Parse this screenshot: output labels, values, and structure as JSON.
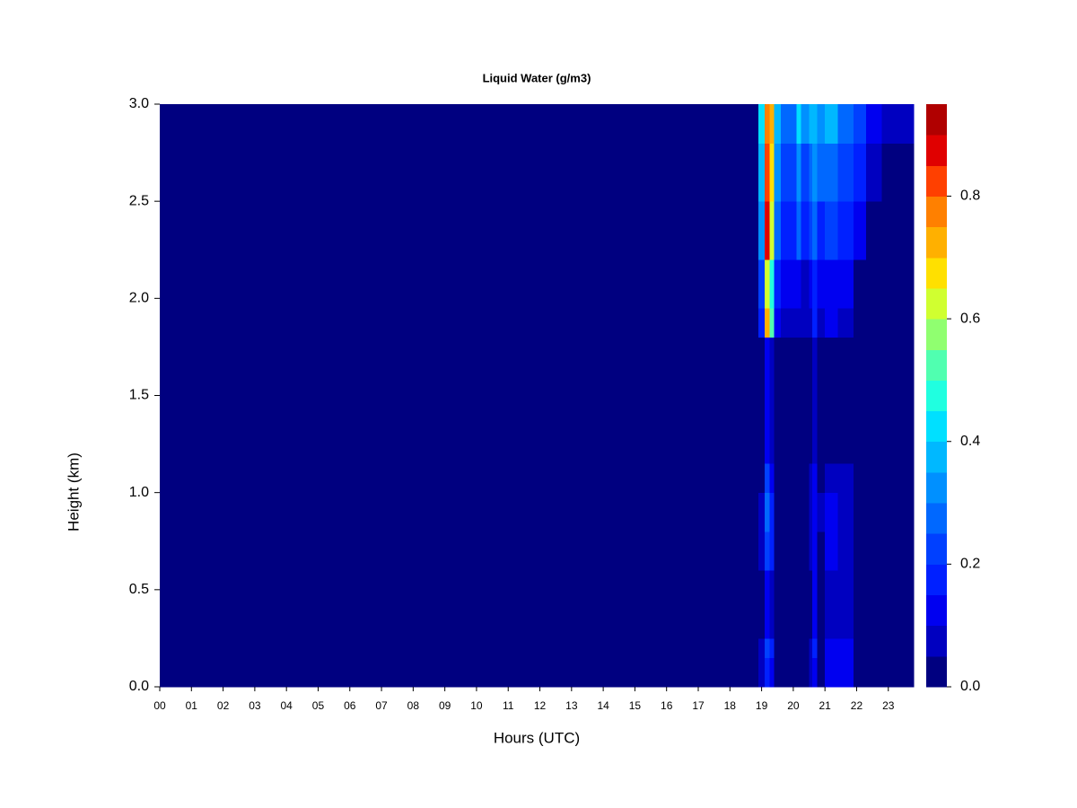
{
  "chart_data": {
    "type": "heatmap",
    "title": "Liquid Water (g/m3)",
    "x_label": "Hours (UTC)",
    "y_label": "Height (km)",
    "xlim": [
      0,
      23.8
    ],
    "ylim": [
      0,
      3
    ],
    "xticks": [
      {
        "value": 0,
        "label": "00"
      },
      {
        "value": 1,
        "label": "01"
      },
      {
        "value": 2,
        "label": "02"
      },
      {
        "value": 3,
        "label": "03"
      },
      {
        "value": 4,
        "label": "04"
      },
      {
        "value": 5,
        "label": "05"
      },
      {
        "value": 6,
        "label": "06"
      },
      {
        "value": 7,
        "label": "07"
      },
      {
        "value": 8,
        "label": "08"
      },
      {
        "value": 9,
        "label": "09"
      },
      10,
      11,
      12,
      13,
      14,
      15,
      16,
      17,
      18,
      19,
      20,
      21,
      22,
      23
    ],
    "yticks": [
      {
        "value": 0,
        "label": "0.0"
      },
      {
        "value": 0.5,
        "label": "0.5"
      },
      {
        "value": 1,
        "label": "1.0"
      },
      {
        "value": 1.5,
        "label": "1.5"
      },
      {
        "value": 2,
        "label": "2.0"
      },
      {
        "value": 2.5,
        "label": "2.5"
      },
      {
        "value": 3,
        "label": "3.0"
      }
    ],
    "xbins": [
      0,
      17.5,
      18.9,
      19.1,
      19.25,
      19.4,
      19.6,
      20.1,
      20.25,
      20.5,
      20.6,
      20.75,
      21.0,
      21.4,
      21.9,
      22.3,
      22.8,
      23.8
    ],
    "ybins": [
      0,
      0.15,
      0.25,
      0.6,
      0.8,
      1.0,
      1.15,
      1.8,
      1.95,
      2.2,
      2.5,
      2.8,
      3.0
    ],
    "z": [
      [
        0,
        0,
        0.05,
        0.15,
        0.1,
        0.03,
        0.02,
        0.02,
        0.03,
        0.05,
        0.1,
        0.03,
        0.1,
        0.1,
        0.02,
        0,
        0
      ],
      [
        0,
        0,
        0.05,
        0.22,
        0.15,
        0.03,
        0.02,
        0.02,
        0.03,
        0.06,
        0.15,
        0.04,
        0.12,
        0.12,
        0.02,
        0,
        0
      ],
      [
        0,
        0,
        0.03,
        0.12,
        0.08,
        0.02,
        0.02,
        0.02,
        0.02,
        0.04,
        0.1,
        0.03,
        0.08,
        0.07,
        0.01,
        0,
        0
      ],
      [
        0,
        0,
        0.05,
        0.2,
        0.15,
        0.03,
        0.02,
        0.02,
        0.03,
        0.05,
        0.12,
        0.04,
        0.1,
        0.08,
        0.01,
        0,
        0
      ],
      [
        0,
        0,
        0.06,
        0.25,
        0.18,
        0.03,
        0.02,
        0.02,
        0.03,
        0.06,
        0.14,
        0.05,
        0.12,
        0.09,
        0.01,
        0,
        0
      ],
      [
        0,
        0,
        0.04,
        0.2,
        0.12,
        0.02,
        0.02,
        0.02,
        0.02,
        0.05,
        0.12,
        0.03,
        0.08,
        0.06,
        0,
        0,
        0
      ],
      [
        0,
        0,
        0.03,
        0.12,
        0.08,
        0.02,
        0.02,
        0.02,
        0.02,
        0.03,
        0.06,
        0.02,
        0.04,
        0.03,
        0,
        0,
        0
      ],
      [
        0,
        0,
        0.15,
        0.7,
        0.5,
        0.1,
        0.05,
        0.06,
        0.05,
        0.08,
        0.15,
        0.07,
        0.1,
        0.08,
        0.02,
        0,
        0
      ],
      [
        0,
        0.01,
        0.2,
        0.6,
        0.45,
        0.15,
        0.1,
        0.12,
        0.08,
        0.12,
        0.18,
        0.1,
        0.12,
        0.1,
        0.04,
        0.01,
        0
      ],
      [
        0,
        0.02,
        0.3,
        0.85,
        0.6,
        0.25,
        0.15,
        0.25,
        0.15,
        0.2,
        0.25,
        0.18,
        0.2,
        0.15,
        0.1,
        0.04,
        0
      ],
      [
        0,
        0.02,
        0.35,
        0.8,
        0.65,
        0.3,
        0.2,
        0.3,
        0.2,
        0.28,
        0.3,
        0.25,
        0.28,
        0.22,
        0.15,
        0.08,
        0.02
      ],
      [
        0,
        0.02,
        0.4,
        0.75,
        0.7,
        0.35,
        0.25,
        0.4,
        0.3,
        0.35,
        0.35,
        0.32,
        0.35,
        0.28,
        0.2,
        0.12,
        0.05
      ]
    ],
    "levels": [
      0,
      0.05,
      0.1,
      0.15,
      0.2,
      0.25,
      0.3,
      0.35,
      0.4,
      0.45,
      0.5,
      0.55,
      0.6,
      0.65,
      0.7,
      0.75,
      0.8,
      0.85,
      0.9,
      0.95
    ],
    "colors": [
      "#000080",
      "#0000c0",
      "#0000f0",
      "#0020ff",
      "#0040ff",
      "#0068ff",
      "#0090ff",
      "#00b8ff",
      "#00e0ff",
      "#20ffe0",
      "#50ffb0",
      "#90ff70",
      "#d0ff30",
      "#ffe000",
      "#ffb000",
      "#ff8000",
      "#ff4000",
      "#e00000",
      "#b00000"
    ],
    "colorbar_ticks": [
      {
        "value": 0,
        "label": "0.0"
      },
      {
        "value": 0.2,
        "label": "0.2"
      },
      {
        "value": 0.4,
        "label": "0.4"
      },
      {
        "value": 0.6,
        "label": "0.6"
      },
      {
        "value": 0.8,
        "label": "0.8"
      }
    ]
  }
}
